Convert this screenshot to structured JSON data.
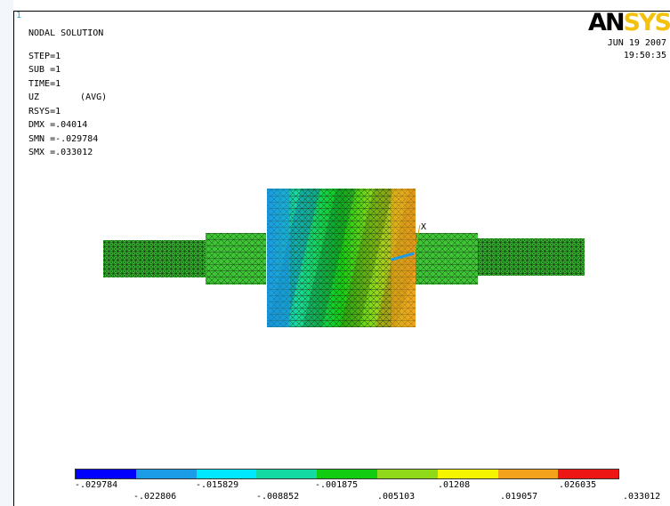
{
  "window_number": "1",
  "info": {
    "title": "NODAL SOLUTION",
    "step": "STEP=1",
    "sub": "SUB =1",
    "time": "TIME=1",
    "uz": "UZ",
    "avg": "(AVG)",
    "rsys": "RSYS=1",
    "dmx": "DMX =.04014",
    "smn": "SMN =-.029784",
    "smx": "SMX =.033012"
  },
  "logo": {
    "part1": "AN",
    "part2": "SYS"
  },
  "date": "JUN 19 2007",
  "time_of_day": "19:50:35",
  "axis_label": "X",
  "legend": {
    "colors": [
      "#0000ff",
      "#1c9be6",
      "#00e8ff",
      "#15d9a2",
      "#12cc12",
      "#8fd91a",
      "#f5f500",
      "#f3a21c",
      "#ee1515"
    ],
    "labels_top": [
      "-.029784",
      "-.015829",
      "-.001875",
      ".01208",
      ".026035"
    ],
    "labels_bottom": [
      "-.022806",
      "-.008852",
      ".005103",
      ".019057",
      ".033012"
    ]
  }
}
